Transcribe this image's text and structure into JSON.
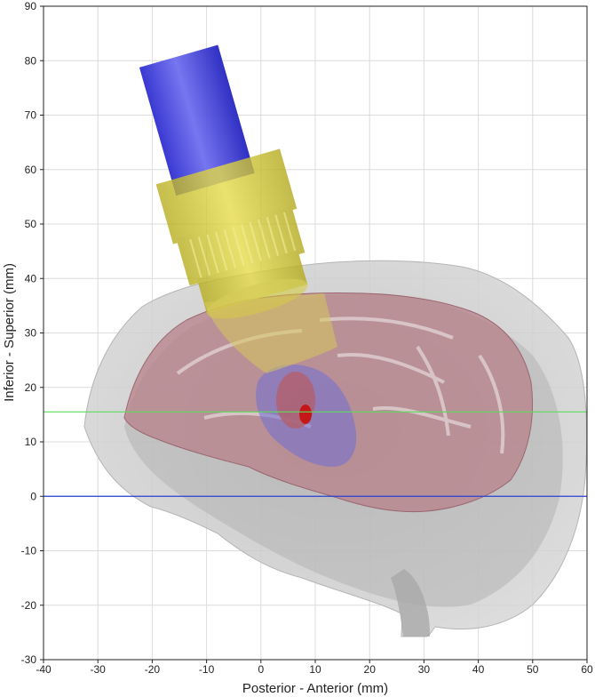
{
  "chart_data": {
    "type": "scatter",
    "title": "",
    "xlabel": "Posterior - Anterior (mm)",
    "ylabel": "Inferior - Superior (mm)",
    "xlim": [
      -40,
      60
    ],
    "ylim": [
      -30,
      90
    ],
    "x_ticks": [
      -40,
      -30,
      -20,
      -10,
      0,
      10,
      20,
      30,
      40,
      50,
      60
    ],
    "y_ticks": [
      -30,
      -20,
      -10,
      0,
      10,
      20,
      30,
      40,
      50,
      60,
      70,
      80,
      90
    ],
    "grid": true,
    "reference_lines": [
      {
        "y": 0,
        "color": "#2a3fd6"
      },
      {
        "y": 15.5,
        "color": "#5ddc5d"
      }
    ],
    "colors": {
      "grid": "#dcdcdc",
      "axes": "#222222",
      "head_volume": "#c8c8c8",
      "brain_surface": "#b8808a",
      "transducer_housing": "#c6bd2a",
      "transducer_body": "#3a3adf",
      "target_region": "#6f6fd6",
      "focus_spot": "#c41818"
    }
  }
}
